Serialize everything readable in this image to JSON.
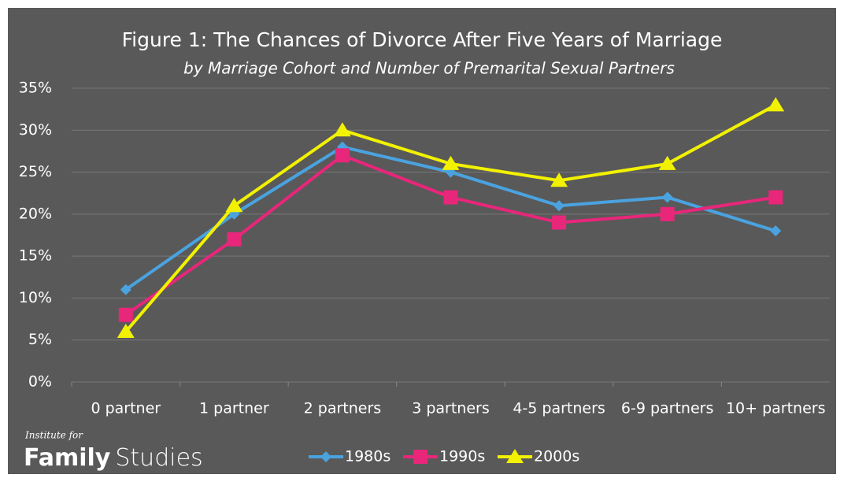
{
  "chart_data": {
    "type": "line",
    "title": "Figure 1: The Chances of Divorce After Five Years of Marriage",
    "subtitle": "by Marriage Cohort and Number of Premarital Sexual Partners",
    "categories": [
      "0 partner",
      "1 partner",
      "2 partners",
      "3 partners",
      "4-5 partners",
      "6-9 partners",
      "10+ partners"
    ],
    "series": [
      {
        "name": "1980s",
        "color": "#4aa3df",
        "marker": "diamond",
        "values": [
          11,
          20,
          28,
          25,
          21,
          22,
          18
        ]
      },
      {
        "name": "1990s",
        "color": "#e8267a",
        "marker": "square",
        "values": [
          8,
          17,
          27,
          22,
          19,
          20,
          22
        ]
      },
      {
        "name": "2000s",
        "color": "#f2f200",
        "marker": "triangle",
        "values": [
          6,
          21,
          30,
          26,
          24,
          26,
          33
        ]
      }
    ],
    "ylim": [
      0,
      35
    ],
    "yticks": [
      {
        "value": 0,
        "label": "0%"
      },
      {
        "value": 5,
        "label": "5%"
      },
      {
        "value": 10,
        "label": "10%"
      },
      {
        "value": 15,
        "label": "15%"
      },
      {
        "value": 20,
        "label": "20%"
      },
      {
        "value": 25,
        "label": "25%"
      },
      {
        "value": 30,
        "label": "30%"
      },
      {
        "value": 35,
        "label": "35%"
      }
    ],
    "grid": true,
    "legend": "bottom"
  },
  "branding": {
    "small": "Institute for",
    "bold": "Family",
    "light": "Studies"
  }
}
